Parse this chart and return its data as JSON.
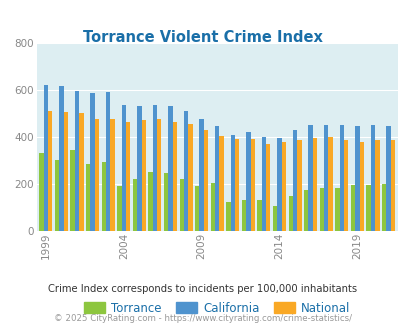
{
  "title": "Torrance Violent Crime Index",
  "subtitle": "Crime Index corresponds to incidents per 100,000 inhabitants",
  "footer": "© 2025 CityRating.com - https://www.cityrating.com/crime-statistics/",
  "years": [
    1999,
    2000,
    2001,
    2002,
    2003,
    2004,
    2005,
    2006,
    2007,
    2008,
    2009,
    2010,
    2011,
    2012,
    2013,
    2014,
    2015,
    2016,
    2017,
    2018,
    2019,
    2020,
    2021
  ],
  "torrance": [
    330,
    300,
    345,
    285,
    295,
    190,
    220,
    250,
    245,
    220,
    190,
    205,
    125,
    130,
    130,
    105,
    150,
    175,
    185,
    185,
    195,
    195,
    200
  ],
  "california": [
    620,
    615,
    595,
    585,
    590,
    535,
    530,
    535,
    530,
    510,
    475,
    445,
    410,
    420,
    400,
    395,
    430,
    450,
    450,
    450,
    445,
    450,
    445
  ],
  "national": [
    510,
    505,
    500,
    475,
    475,
    465,
    470,
    475,
    465,
    455,
    430,
    405,
    390,
    390,
    370,
    380,
    385,
    395,
    400,
    385,
    380,
    385,
    385
  ],
  "torrance_color": "#8dc63f",
  "california_color": "#4f93ce",
  "national_color": "#f9a825",
  "bg_color": "#ddeef2",
  "ylim": [
    0,
    800
  ],
  "yticks": [
    0,
    200,
    400,
    600,
    800
  ],
  "xtick_years": [
    1999,
    2004,
    2009,
    2014,
    2019
  ],
  "title_color": "#1a6fa8",
  "subtitle_color": "#333333",
  "footer_color": "#999999",
  "bar_width": 0.28,
  "grid_color": "#ffffff",
  "tick_color": "#888888"
}
